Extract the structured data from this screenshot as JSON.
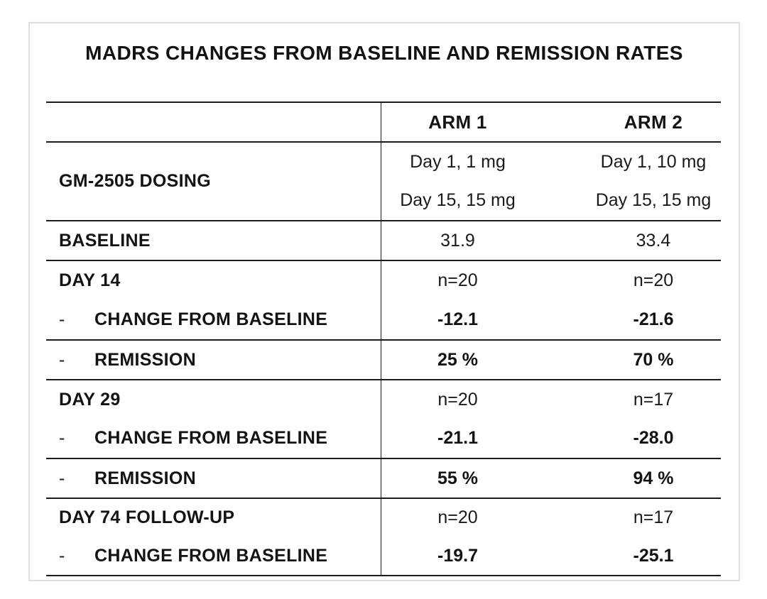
{
  "page": {
    "background": "#ffffff",
    "card_border_color": "#dedede",
    "line_color": "#1b1b1b",
    "text_color": "#141414"
  },
  "chart_data": {
    "type": "table",
    "title": "MADRS CHANGES FROM BASELINE AND REMISSION RATES",
    "columns": [
      "ARM 1",
      "ARM 2"
    ],
    "bullet": "-",
    "rows": [
      {
        "label": "GM-2505 DOSING",
        "arm1": [
          "Day 1, 1 mg",
          "Day 15, 15 mg"
        ],
        "arm2": [
          "Day 1, 10 mg",
          "Day 15, 15 mg"
        ]
      },
      {
        "label": "BASELINE",
        "arm1": "31.9",
        "arm2": "33.4"
      },
      {
        "label": "DAY 14",
        "arm1": "n=20",
        "arm2": "n=20"
      },
      {
        "label": "CHANGE FROM BASELINE",
        "indent": true,
        "arm1": "-12.1",
        "arm2": "-21.6"
      },
      {
        "label": "REMISSION",
        "indent": true,
        "arm1": "25 %",
        "arm2": "70 %"
      },
      {
        "label": "DAY 29",
        "arm1": "n=20",
        "arm2": "n=17"
      },
      {
        "label": "CHANGE FROM BASELINE",
        "indent": true,
        "arm1": "-21.1",
        "arm2": "-28.0"
      },
      {
        "label": "REMISSION",
        "indent": true,
        "arm1": "55 %",
        "arm2": "94 %"
      },
      {
        "label": "DAY 74 FOLLOW-UP",
        "arm1": "n=20",
        "arm2": "n=17"
      },
      {
        "label": "CHANGE FROM BASELINE",
        "indent": true,
        "arm1": "-19.7",
        "arm2": "-25.1"
      }
    ]
  }
}
